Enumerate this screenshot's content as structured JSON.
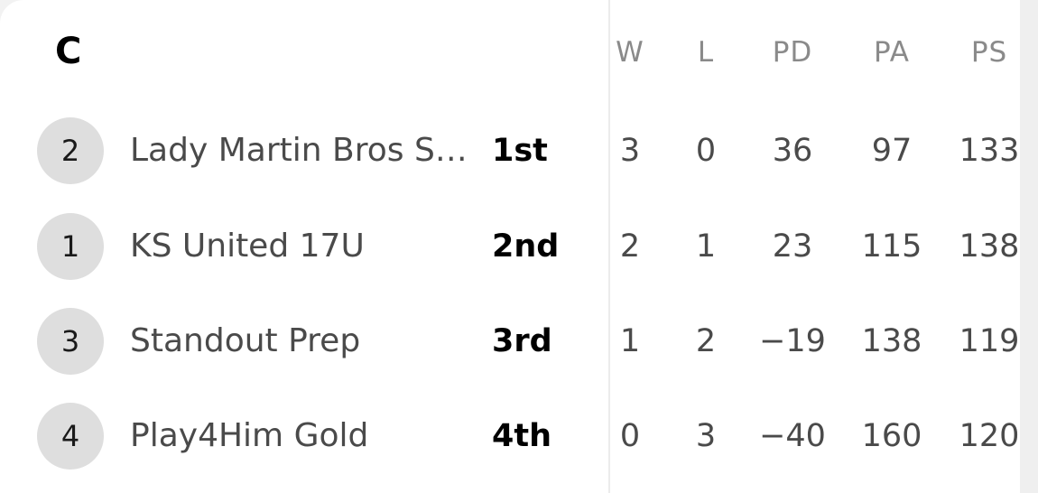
{
  "group": {
    "title": "C"
  },
  "columns": [
    {
      "key": "w",
      "label": "W"
    },
    {
      "key": "l",
      "label": "L"
    },
    {
      "key": "pd",
      "label": "PD"
    },
    {
      "key": "pa",
      "label": "PA"
    },
    {
      "key": "ps",
      "label": "PS"
    }
  ],
  "rows": [
    {
      "seed": "2",
      "team": "Lady Martin Bros S…",
      "place": "1st",
      "w": "3",
      "l": "0",
      "pd": "36",
      "pa": "97",
      "ps": "133"
    },
    {
      "seed": "1",
      "team": "KS United 17U",
      "place": "2nd",
      "w": "2",
      "l": "1",
      "pd": "23",
      "pa": "115",
      "ps": "138"
    },
    {
      "seed": "3",
      "team": "Standout Prep",
      "place": "3rd",
      "w": "1",
      "l": "2",
      "pd": "−19",
      "pa": "138",
      "ps": "119"
    },
    {
      "seed": "4",
      "team": "Play4Him Gold",
      "place": "4th",
      "w": "0",
      "l": "3",
      "pd": "−40",
      "pa": "160",
      "ps": "120"
    }
  ]
}
